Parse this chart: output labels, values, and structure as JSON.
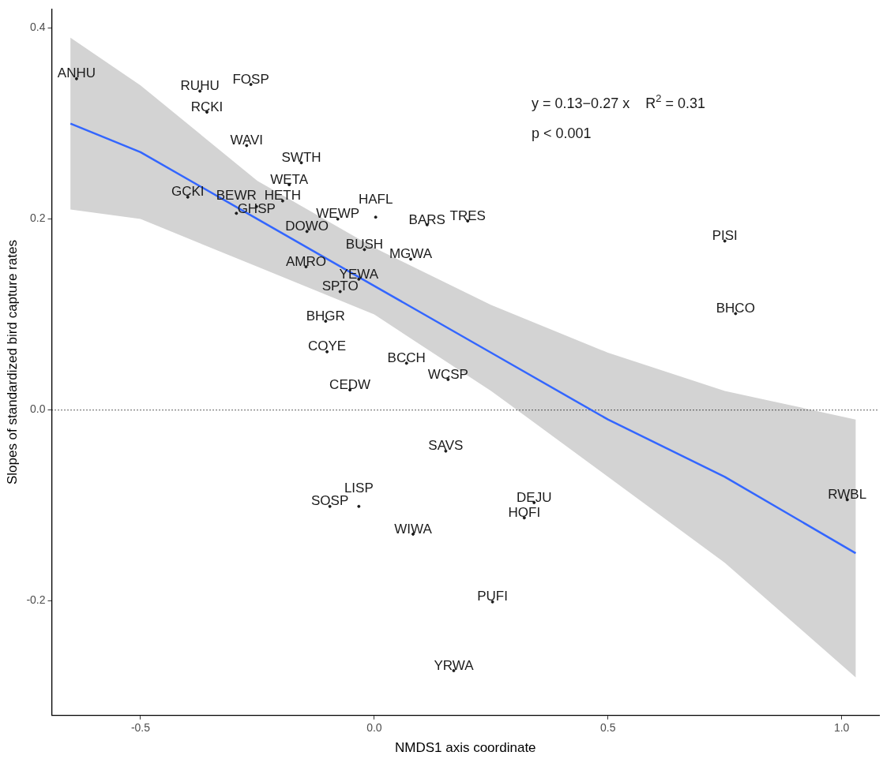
{
  "chart_data": {
    "type": "scatter",
    "xlabel": "NMDS1 axis coordinate",
    "ylabel": "Slopes of standardized bird capture rates",
    "xlim": [
      -0.69,
      1.08
    ],
    "ylim": [
      -0.32,
      0.42
    ],
    "xticks": [
      -0.5,
      {
        "value": 0,
        "label": "0.0"
      },
      0.5,
      {
        "value": 1,
        "label": "1.0"
      }
    ],
    "yticks": [
      -0.2,
      {
        "value": 0,
        "label": "0.0"
      },
      0.2,
      0.4
    ],
    "grid": false,
    "legend": false,
    "series": [
      {
        "type": "scatter",
        "color": "#1a1a1a",
        "x": [
          -0.637,
          -0.373,
          -0.264,
          -0.358,
          -0.273,
          -0.156,
          -0.182,
          -0.196,
          -0.399,
          -0.252,
          -0.295,
          -0.144,
          -0.078,
          0.003,
          0.113,
          0.2,
          0.75,
          -0.021,
          0.078,
          -0.146,
          -0.033,
          -0.073,
          0.773,
          -0.104,
          -0.101,
          0.069,
          0.158,
          -0.052,
          0.153,
          -0.095,
          -0.033,
          0.342,
          0.321,
          0.083,
          1.012,
          0.253,
          0.17
        ],
        "values": [
          0.347,
          0.334,
          0.341,
          0.312,
          0.277,
          0.259,
          0.236,
          0.219,
          0.223,
          0.213,
          0.206,
          0.187,
          0.2,
          0.202,
          0.194,
          0.198,
          0.177,
          0.168,
          0.158,
          0.15,
          0.137,
          0.124,
          0.101,
          0.093,
          0.061,
          0.049,
          0.032,
          0.021,
          -0.043,
          -0.101,
          -0.101,
          -0.097,
          -0.113,
          -0.13,
          -0.094,
          -0.201,
          -0.273
        ],
        "value_labels": [
          "ANHU",
          "RUHU",
          "FOSP",
          "RCKI",
          "WAVI",
          "SWTH",
          "WETA",
          "HETH",
          "GCKI",
          "GHSP",
          "BEWR",
          "DOWO",
          "WEWP",
          "HAFL",
          "BARS",
          "TRES",
          "PISI",
          "BUSH",
          "MGWA",
          "AMRO",
          "YEWA",
          "SPTO",
          "BHCO",
          "BHGR",
          "COYE",
          "BCCH",
          "WCSP",
          "CEDW",
          "SAVS",
          "SOSP",
          "LISP",
          "DEJU",
          "HOFI",
          "WIWA",
          "RWBL",
          "PUFI",
          "YRWA"
        ]
      },
      {
        "type": "line",
        "color": "#3366ff",
        "x": [
          -0.65,
          -0.5,
          -0.25,
          0,
          0.25,
          0.5,
          0.75,
          1.03
        ],
        "values": [
          0.3,
          0.27,
          0.2,
          0.13,
          0.06,
          -0.01,
          -0.07,
          -0.15
        ],
        "lower": [
          0.21,
          0.2,
          0.15,
          0.1,
          0.02,
          -0.07,
          -0.16,
          -0.28
        ],
        "upper": [
          0.39,
          0.34,
          0.24,
          0.17,
          0.11,
          0.06,
          0.02,
          -0.01
        ]
      }
    ],
    "ref_lines": [
      {
        "axis": "y",
        "value": 0,
        "line_style": "dotted",
        "color": "#000000"
      }
    ],
    "annotations": [
      "y = 0.13−0.27 x    R$^{2}$ = 0.31",
      "p < 0.001"
    ]
  }
}
